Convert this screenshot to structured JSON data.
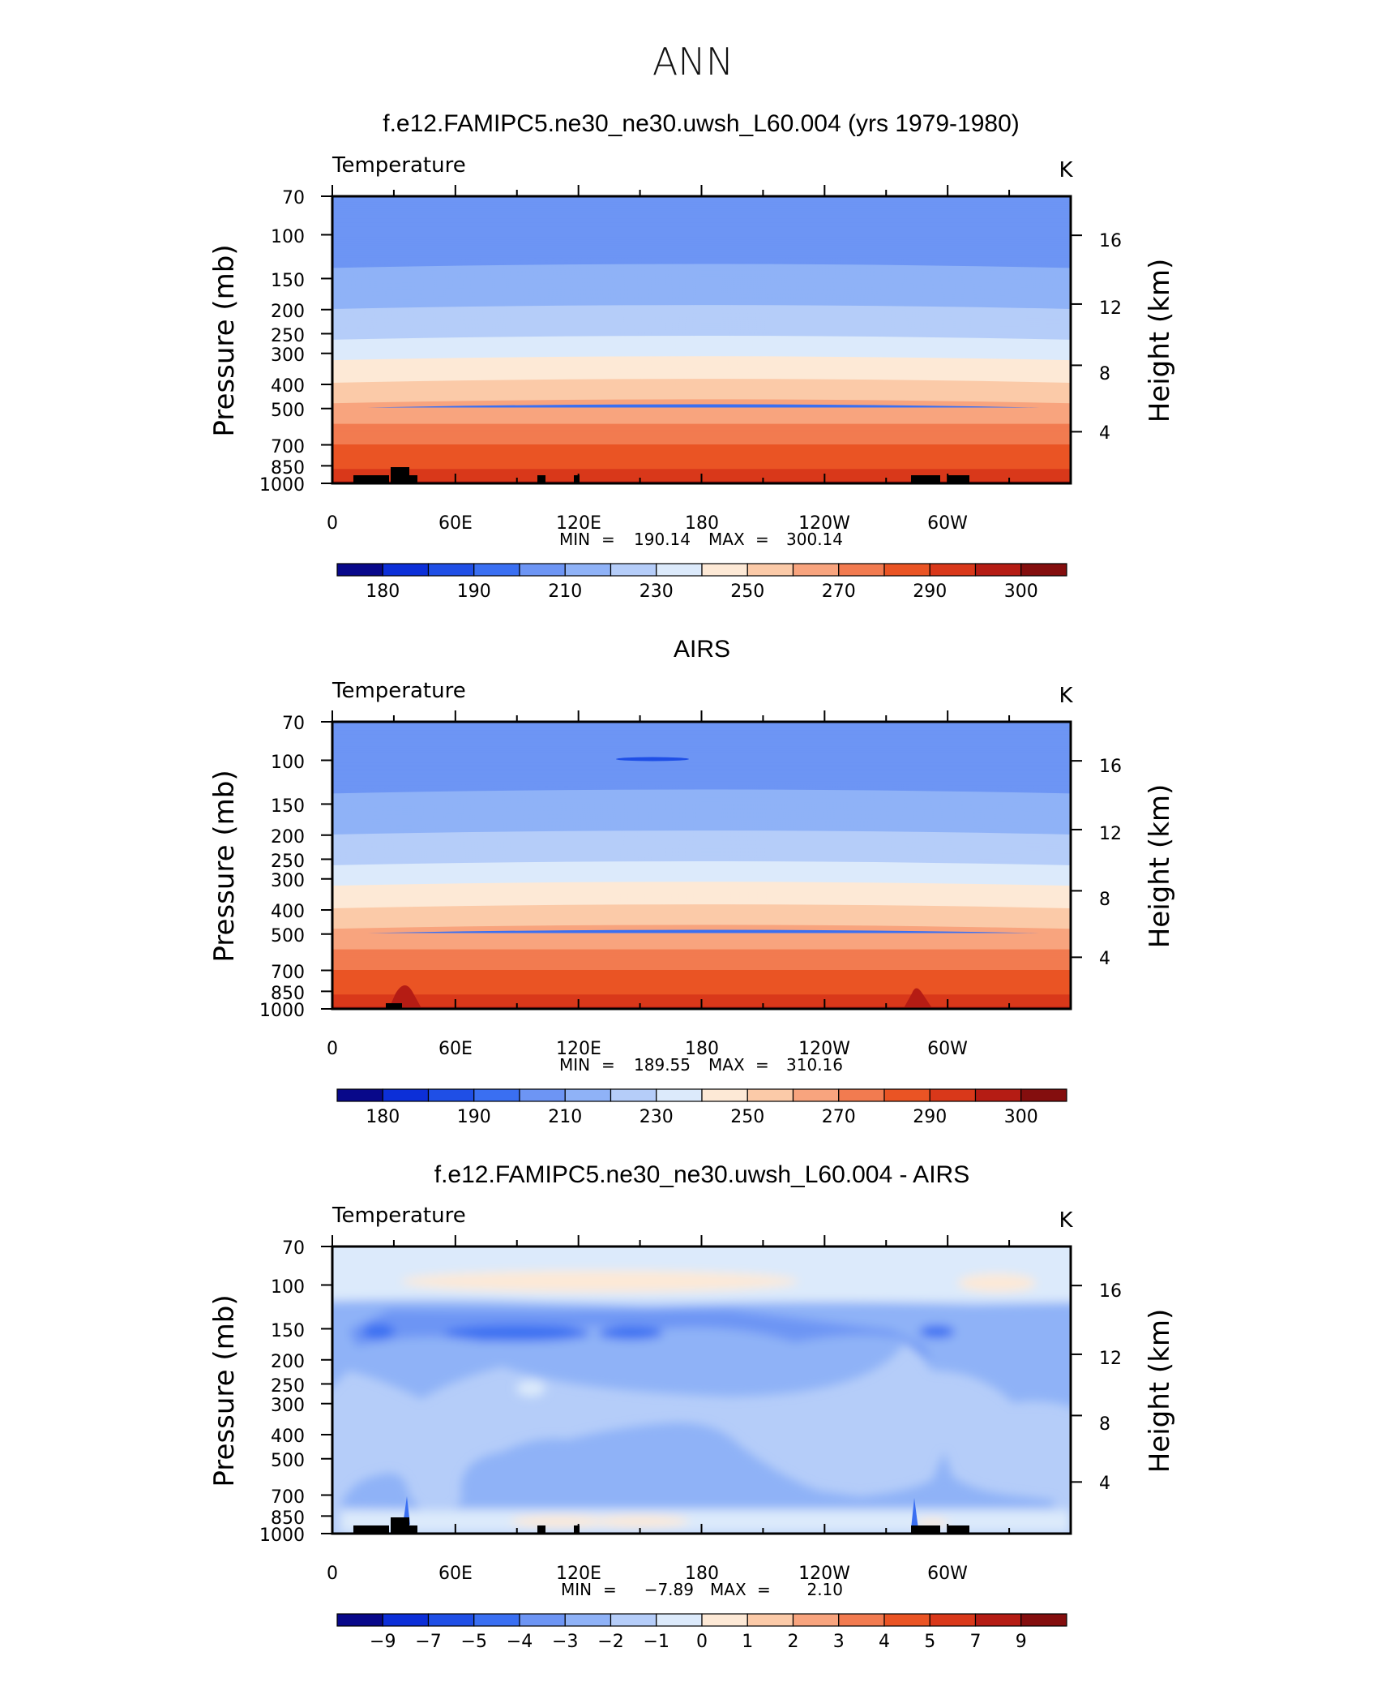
{
  "figure": {
    "season": "ANN",
    "colors": {
      "temperature_levels": [
        "#08088a",
        "#0c2fd8",
        "#1f4fe6",
        "#3a6ff2",
        "#6d95f4",
        "#8fb2f7",
        "#b5cdf9",
        "#dceafb",
        "#fde9d6",
        "#fbcaa8",
        "#f8a47e",
        "#f27b50",
        "#ea5424",
        "#d9381a",
        "#b51c14",
        "#840e0e"
      ],
      "difference_levels": [
        "#08088a",
        "#0c2fd8",
        "#1f4fe6",
        "#3a6ff2",
        "#6d95f4",
        "#8fb2f7",
        "#b5cdf9",
        "#dceafb",
        "#fde9d6",
        "#fbcaa8",
        "#f8a47e",
        "#f27b50",
        "#ea5424",
        "#d9381a",
        "#b51c14",
        "#840e0e"
      ],
      "terrain": "#000000"
    }
  },
  "chart_data": [
    {
      "type": "heatmap",
      "title": "f.e12.FAMIPC5.ne30_ne30.uwsh_L60.004 (yrs 1979-1980)",
      "variable": "Temperature",
      "units": "K",
      "ylabel": "Pressure (mb)",
      "y2label": "Height (km)",
      "xticks": [
        "0",
        "60E",
        "120E",
        "180",
        "120W",
        "60W"
      ],
      "x_values_deg": [
        0,
        60,
        120,
        180,
        240,
        300
      ],
      "xlim_deg": [
        0,
        360
      ],
      "yticks": [
        "70",
        "100",
        "150",
        "200",
        "250",
        "300",
        "400",
        "500",
        "700",
        "850",
        "1000"
      ],
      "y_values_mb": [
        70,
        100,
        150,
        200,
        250,
        300,
        400,
        500,
        700,
        850,
        1000
      ],
      "ylim_mb": [
        1000,
        70
      ],
      "y_scale": "log",
      "y2ticks": [
        "16",
        "12",
        "8",
        "4"
      ],
      "y2_values_km": [
        16,
        12,
        8,
        4
      ],
      "stats": {
        "min_label": "MIN",
        "min": "190.14",
        "max_label": "MAX",
        "max": "300.14"
      },
      "colorbar": {
        "labels": [
          "180",
          "190",
          "210",
          "230",
          "250",
          "270",
          "290",
          "300"
        ],
        "levels": [
          180,
          185,
          190,
          200,
          210,
          220,
          230,
          240,
          250,
          260,
          270,
          280,
          290,
          295,
          300
        ],
        "label_every": 2,
        "first_label_box": 1
      },
      "profile_levels_mb": [
        70,
        100,
        150,
        200,
        250,
        300,
        400,
        500,
        700,
        850,
        1000
      ],
      "profile_temperature_k": [
        205,
        204,
        212,
        220,
        227,
        237,
        251,
        262,
        280,
        289,
        296
      ]
    },
    {
      "type": "heatmap",
      "title": "AIRS",
      "variable": "Temperature",
      "units": "K",
      "ylabel": "Pressure (mb)",
      "y2label": "Height (km)",
      "xticks": [
        "0",
        "60E",
        "120E",
        "180",
        "120W",
        "60W"
      ],
      "x_values_deg": [
        0,
        60,
        120,
        180,
        240,
        300
      ],
      "xlim_deg": [
        0,
        360
      ],
      "yticks": [
        "70",
        "100",
        "150",
        "200",
        "250",
        "300",
        "400",
        "500",
        "700",
        "850",
        "1000"
      ],
      "y_values_mb": [
        70,
        100,
        150,
        200,
        250,
        300,
        400,
        500,
        700,
        850,
        1000
      ],
      "ylim_mb": [
        1000,
        70
      ],
      "y_scale": "log",
      "y2ticks": [
        "16",
        "12",
        "8",
        "4"
      ],
      "y2_values_km": [
        16,
        12,
        8,
        4
      ],
      "stats": {
        "min_label": "MIN",
        "min": "189.55",
        "max_label": "MAX",
        "max": "310.16"
      },
      "colorbar": {
        "labels": [
          "180",
          "190",
          "210",
          "230",
          "250",
          "270",
          "290",
          "300"
        ],
        "levels": [
          180,
          185,
          190,
          200,
          210,
          220,
          230,
          240,
          250,
          260,
          270,
          280,
          290,
          295,
          300
        ],
        "label_every": 2,
        "first_label_box": 1
      }
    },
    {
      "type": "heatmap",
      "title": "f.e12.FAMIPC5.ne30_ne30.uwsh_L60.004 - AIRS",
      "variable": "Temperature",
      "units": "K",
      "ylabel": "Pressure (mb)",
      "y2label": "Height (km)",
      "xticks": [
        "0",
        "60E",
        "120E",
        "180",
        "120W",
        "60W"
      ],
      "x_values_deg": [
        0,
        60,
        120,
        180,
        240,
        300
      ],
      "xlim_deg": [
        0,
        360
      ],
      "yticks": [
        "70",
        "100",
        "150",
        "200",
        "250",
        "300",
        "400",
        "500",
        "700",
        "850",
        "1000"
      ],
      "y_values_mb": [
        70,
        100,
        150,
        200,
        250,
        300,
        400,
        500,
        700,
        850,
        1000
      ],
      "ylim_mb": [
        1000,
        70
      ],
      "y_scale": "log",
      "y2ticks": [
        "16",
        "12",
        "8",
        "4"
      ],
      "y2_values_km": [
        16,
        12,
        8,
        4
      ],
      "stats": {
        "min_label": "MIN",
        "min": "−7.89",
        "max_label": "MAX",
        "max": "2.10"
      },
      "colorbar": {
        "labels": [
          "−9",
          "−7",
          "−5",
          "−4",
          "−3",
          "−2",
          "−1",
          "0",
          "1",
          "2",
          "3",
          "4",
          "5",
          "7",
          "9"
        ],
        "levels": [
          -9,
          -7,
          -5,
          -4,
          -3,
          -2,
          -1,
          0,
          1,
          2,
          3,
          4,
          5,
          7,
          9
        ],
        "label_every": 1,
        "first_label_box": 1
      }
    }
  ]
}
